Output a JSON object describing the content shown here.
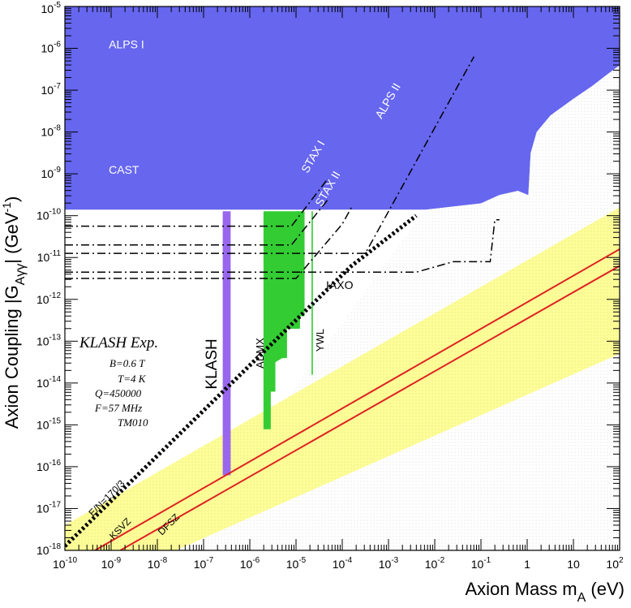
{
  "chart_data": {
    "type": "area",
    "xlabel_main": "Axion Mass m",
    "xlabel_sub": "A",
    "xlabel_unit": " (eV)",
    "ylabel_main": "Axion Coupling |G",
    "ylabel_sub": "Aγγ",
    "ylabel_unit": "| (GeV",
    "ylabel_unit_exp": "-1",
    "ylabel_close": ")",
    "xlim_exp": [
      -10,
      2
    ],
    "ylim_exp": [
      -18,
      -5
    ],
    "log_x": true,
    "log_y": true,
    "x_ticks": [
      {
        "base": "10",
        "exp": "-10"
      },
      {
        "base": "10",
        "exp": "-9"
      },
      {
        "base": "10",
        "exp": "-8"
      },
      {
        "base": "10",
        "exp": "-7"
      },
      {
        "base": "10",
        "exp": "-6"
      },
      {
        "base": "10",
        "exp": "-5"
      },
      {
        "base": "10",
        "exp": "-4"
      },
      {
        "base": "10",
        "exp": "-3"
      },
      {
        "base": "10",
        "exp": "-2"
      },
      {
        "base": "10",
        "exp": "-1"
      },
      {
        "base": "1",
        "exp": ""
      },
      {
        "base": "10",
        "exp": ""
      },
      {
        "base": "10",
        "exp": "2"
      }
    ],
    "y_ticks": [
      {
        "base": "10",
        "exp": "-18"
      },
      {
        "base": "10",
        "exp": "-17"
      },
      {
        "base": "10",
        "exp": "-16"
      },
      {
        "base": "10",
        "exp": "-15"
      },
      {
        "base": "10",
        "exp": "-14"
      },
      {
        "base": "10",
        "exp": "-13"
      },
      {
        "base": "10",
        "exp": "-12"
      },
      {
        "base": "10",
        "exp": "-11"
      },
      {
        "base": "10",
        "exp": "-10"
      },
      {
        "base": "10",
        "exp": "-9"
      },
      {
        "base": "10",
        "exp": "-8"
      },
      {
        "base": "10",
        "exp": "-7"
      },
      {
        "base": "10",
        "exp": "-6"
      },
      {
        "base": "10",
        "exp": "-5"
      }
    ],
    "regions": [
      {
        "name": "ALPS I",
        "color": "#f39a17",
        "points": [
          [
            -10,
            -5
          ],
          [
            -6.36,
            -5
          ],
          [
            -6.36,
            -6.9
          ],
          [
            -6.66,
            -7.15
          ],
          [
            -10,
            -7.15
          ]
        ]
      },
      {
        "name": "CAST",
        "color": "#6666ee",
        "points": [
          [
            -10,
            -9.85
          ],
          [
            -2.2,
            -9.85
          ],
          [
            -1.4,
            -9.75
          ],
          [
            -1.0,
            -9.7
          ],
          [
            -0.6,
            -9.5
          ],
          [
            -0.2,
            -9.4
          ],
          [
            0.02,
            -9.5
          ],
          [
            0.07,
            -8.5
          ],
          [
            0.2,
            -8.0
          ],
          [
            0.5,
            -7.6
          ],
          [
            1.0,
            -7.2
          ],
          [
            1.4,
            -6.9
          ],
          [
            1.75,
            -6.6
          ],
          [
            2,
            -6.4
          ],
          [
            2,
            -5
          ],
          [
            -10,
            -5
          ]
        ]
      },
      {
        "name": "ADMX",
        "color": "#33cc33",
        "points": [
          [
            -5.7,
            -9.9
          ],
          [
            -5.7,
            -15.1
          ],
          [
            -5.55,
            -15.1
          ],
          [
            -5.55,
            -14.2
          ],
          [
            -5.45,
            -14.2
          ],
          [
            -5.45,
            -13.5
          ],
          [
            -5.3,
            -13.4
          ],
          [
            -5.2,
            -13.4
          ],
          [
            -5.2,
            -12.7
          ],
          [
            -4.92,
            -12.7
          ],
          [
            -4.92,
            -9.9
          ]
        ]
      },
      {
        "name": "YWL",
        "color": "#33cc33",
        "points": [
          [
            -4.66,
            -9.9
          ],
          [
            -4.66,
            -13.8
          ],
          [
            -4.64,
            -13.8
          ],
          [
            -4.64,
            -9.9
          ]
        ]
      },
      {
        "name": "YWL",
        "color": "#33cc33",
        "points": [
          [
            -4.98,
            -9.9
          ],
          [
            -4.98,
            -12.4
          ],
          [
            -4.82,
            -12.4
          ],
          [
            -4.82,
            -9.9
          ]
        ]
      },
      {
        "name": "KLASH",
        "color": "#9966ee",
        "points": [
          [
            -6.58,
            -9.9
          ],
          [
            -6.58,
            -16.2
          ],
          [
            -6.42,
            -16.2
          ],
          [
            -6.42,
            -9.9
          ]
        ]
      }
    ],
    "band": {
      "name": "QCD axion band",
      "color": "#fdfd99",
      "points": [
        [
          -10,
          -17.4
        ],
        [
          -10,
          -18
        ],
        [
          -7.6,
          -18
        ],
        [
          2,
          -13.3
        ],
        [
          2,
          -9.8
        ]
      ]
    },
    "lines": [
      {
        "name": "KSVZ",
        "color": "#dd2222",
        "style": "solid",
        "width": 2,
        "points": [
          [
            -9.35,
            -18
          ],
          [
            2,
            -10.8
          ]
        ]
      },
      {
        "name": "DFSZ",
        "color": "#dd2222",
        "style": "solid",
        "width": 2,
        "points": [
          [
            -8.8,
            -18
          ],
          [
            2,
            -11.2
          ]
        ]
      },
      {
        "name": "E/N=170/3",
        "color": "#000000",
        "style": "dotted",
        "width": 5,
        "points": [
          [
            -10,
            -17.9
          ],
          [
            -3.8,
            -11.2
          ],
          [
            -2.4,
            -10.0
          ]
        ]
      },
      {
        "name": "ALPS II",
        "color": "#000000",
        "style": "dashdot",
        "width": 1.5,
        "points": [
          [
            -10,
            -10.9
          ],
          [
            -3.5,
            -10.9
          ],
          [
            -1.15,
            -6.2
          ]
        ]
      },
      {
        "name": "IAXO",
        "color": "#000000",
        "style": "dashdot",
        "width": 1.5,
        "points": [
          [
            -10,
            -11.35
          ],
          [
            -2.4,
            -11.35
          ],
          [
            -1.6,
            -11.1
          ],
          [
            -0.8,
            -11.1
          ],
          [
            -0.7,
            -10.1
          ],
          [
            -0.6,
            -10.1
          ]
        ]
      },
      {
        "name": "IAXO",
        "color": "#000000",
        "style": "dashdot",
        "width": 1.5,
        "points": [
          [
            -10,
            -11.5
          ],
          [
            -5,
            -11.5
          ],
          [
            -4.0,
            -10.2
          ],
          [
            -3.8,
            -9.8
          ]
        ]
      },
      {
        "name": "STAX I",
        "color": "#000000",
        "style": "dashdot",
        "width": 1.5,
        "points": [
          [
            -10,
            -10.25
          ],
          [
            -5.1,
            -10.25
          ],
          [
            -4.3,
            -9.1
          ]
        ]
      },
      {
        "name": "STAX II",
        "color": "#000000",
        "style": "dashdot",
        "width": 1.5,
        "points": [
          [
            -10,
            -10.7
          ],
          [
            -5.1,
            -10.7
          ],
          [
            -4.3,
            -9.6
          ]
        ]
      }
    ],
    "annotations": [
      {
        "name": "ALPS I",
        "text": "ALPS I",
        "x": -9.05,
        "y": -6.0,
        "size": 14,
        "color": "#ffffff",
        "rot": 0
      },
      {
        "name": "CAST",
        "text": "CAST",
        "x": -9.05,
        "y": -9.0,
        "size": 14,
        "color": "#ffffff",
        "rot": 0
      },
      {
        "name": "STAX I",
        "text": "STAX I",
        "x": -4.75,
        "y": -9.0,
        "size": 14,
        "color": "#ffffff",
        "rot": -60
      },
      {
        "name": "STAX II",
        "text": "STAX II",
        "x": -4.45,
        "y": -9.8,
        "size": 14,
        "color": "#ffffff",
        "rot": -60
      },
      {
        "name": "ALPS II",
        "text": "ALPS II",
        "x": -3.15,
        "y": -7.7,
        "size": 14,
        "color": "#ffffff",
        "rot": -60
      },
      {
        "name": "IAXO",
        "text": "IAXO",
        "x": -4.35,
        "y": -11.75,
        "size": 14,
        "color": "#000000",
        "rot": 0
      },
      {
        "name": "YWL",
        "text": "YWL",
        "x": -4.4,
        "y": -13.25,
        "size": 13,
        "color": "#000000",
        "rot": -90
      },
      {
        "name": "ADMX",
        "text": "ADMX",
        "x": -5.7,
        "y": -13.65,
        "size": 13,
        "color": "#000000",
        "rot": -90
      },
      {
        "name": "KLASH",
        "text": "KLASH",
        "x": -6.72,
        "y": -14.15,
        "size": 19,
        "color": "#000000",
        "rot": -90
      },
      {
        "name": "E/N=170/3",
        "text": "E/N=170/3",
        "x": -9.4,
        "y": -17.2,
        "size": 12,
        "color": "#000000",
        "rot": -45
      },
      {
        "name": "KSVZ",
        "text": "KSVZ",
        "x": -8.95,
        "y": -17.75,
        "size": 12,
        "color": "#000000",
        "rot": -45
      },
      {
        "name": "DFSZ",
        "text": "DFSZ",
        "x": -7.9,
        "y": -17.65,
        "size": 12,
        "color": "#000000",
        "rot": -45
      }
    ],
    "klash_box": {
      "title": "KLASH Exp.",
      "lines": [
        "B=0.6 T",
        "T=4 K",
        "Q=450000",
        "F=57 MHz",
        "TM010"
      ]
    }
  }
}
